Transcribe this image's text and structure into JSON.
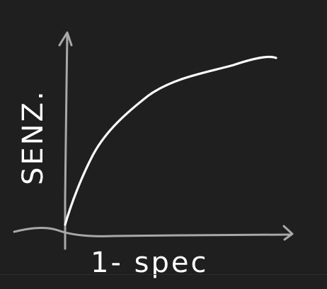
{
  "sketch": {
    "x_axis_label": "1- spec",
    "y_axis_label": "SENZ.",
    "curve_type": "ROC",
    "ink_colors": {
      "background": "#1f1f1f",
      "axes": "#a8a8a8",
      "curve": "#ffffff"
    }
  }
}
